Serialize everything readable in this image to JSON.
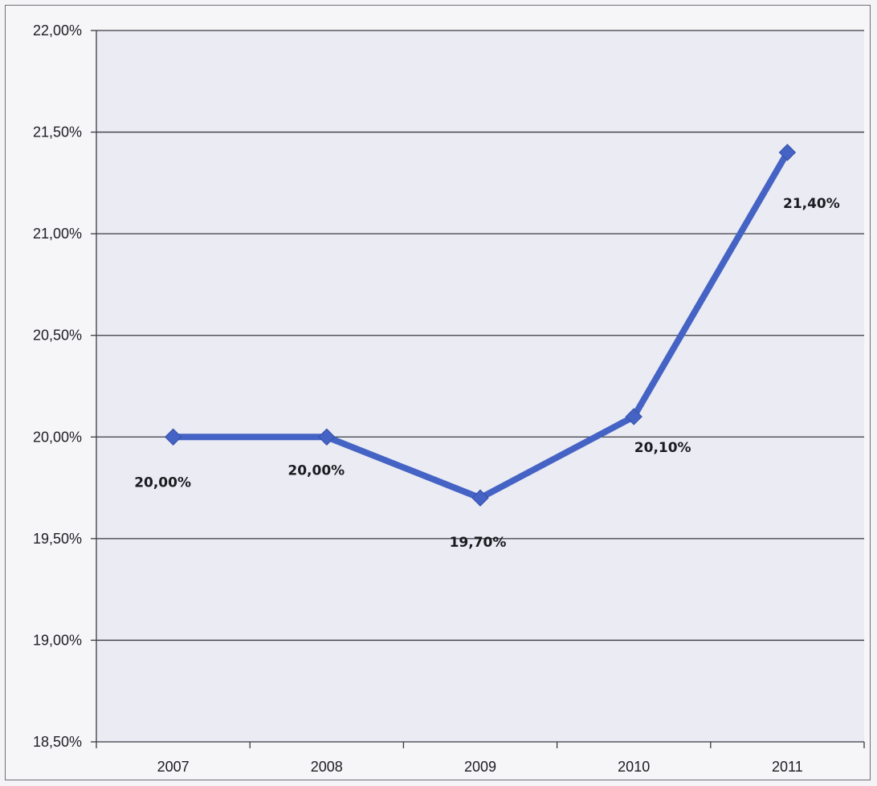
{
  "chart_data": {
    "type": "line",
    "categories": [
      "2007",
      "2008",
      "2009",
      "2010",
      "2011"
    ],
    "series": [
      {
        "values": [
          20.0,
          20.0,
          19.7,
          20.1,
          21.4
        ]
      }
    ],
    "data_labels": [
      "20,00%",
      "20,00%",
      "19,70%",
      "20,10%",
      "21,40%"
    ],
    "y_ticks": [
      18.5,
      19.0,
      19.5,
      20.0,
      20.5,
      21.0,
      21.5,
      22.0
    ],
    "y_tick_labels": [
      "18,50%",
      "19,00%",
      "19,50%",
      "20,00%",
      "20,50%",
      "21,00%",
      "21,50%",
      "22,00%"
    ],
    "ylim": [
      18.5,
      22.0
    ],
    "grid": true,
    "legend": "none",
    "colors": {
      "line": "#4463c4",
      "grid": "#3a3a40",
      "plot_bg": "#ebebf4"
    }
  }
}
